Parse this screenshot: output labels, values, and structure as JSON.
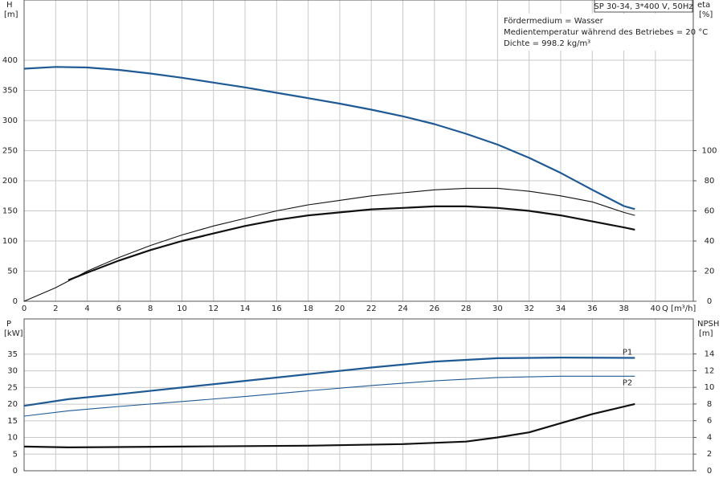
{
  "chart_data": [
    {
      "type": "line",
      "ylabel": "H",
      "yunit": "[m]",
      "y2label": "eta",
      "y2unit": "[%]",
      "xlabel": "Q [m³/h]",
      "title": "SP 30-34, 3*400 V, 50Hz",
      "annotations": [
        "Fördermedium = Wasser",
        "Medientemperatur während des Betriebes = 20 °C",
        "Dichte = 998.2 kg/m³"
      ],
      "xlim": [
        0,
        42.4
      ],
      "xticks": [
        0,
        2,
        4,
        6,
        8,
        10,
        12,
        14,
        16,
        18,
        20,
        22,
        24,
        26,
        28,
        30,
        32,
        34,
        36,
        38,
        40
      ],
      "tick_labels": true,
      "ylim": [
        0,
        500
      ],
      "yticks": [
        0,
        50,
        100,
        150,
        200,
        250,
        300,
        350,
        400
      ],
      "y2lim": [
        0,
        200
      ],
      "y2ticks": [
        0,
        20,
        40,
        60,
        80,
        100
      ],
      "grid": true,
      "series": [
        {
          "color": "#1f5a94",
          "style": "thick",
          "x": [
            0,
            2,
            4,
            6,
            8,
            10,
            12,
            14,
            16,
            18,
            20,
            22,
            24,
            26,
            28,
            30,
            32,
            34,
            36,
            38,
            38.7
          ],
          "values": [
            386,
            389,
            388,
            384,
            378,
            371,
            363,
            355,
            346,
            337,
            328,
            318,
            307,
            294,
            278,
            260,
            238,
            213,
            185,
            158,
            153
          ]
        },
        {
          "color": "#111111",
          "style": "thin",
          "axis": "y2",
          "x": [
            0,
            2,
            4,
            6,
            8,
            10,
            12,
            14,
            16,
            18,
            20,
            22,
            24,
            26,
            28,
            30,
            32,
            34,
            36,
            38,
            38.7
          ],
          "values": [
            0,
            9,
            20,
            29,
            37,
            44,
            50,
            55,
            60,
            64,
            67,
            70,
            72,
            74,
            75,
            75,
            73,
            70,
            66,
            59,
            57
          ]
        },
        {
          "color": "#111111",
          "style": "thick",
          "axis": "y2",
          "x": [
            2.8,
            4,
            6,
            8,
            10,
            12,
            14,
            16,
            18,
            20,
            22,
            24,
            26,
            28,
            30,
            32,
            34,
            36,
            38,
            38.7
          ],
          "values": [
            14,
            19,
            27,
            34,
            40,
            45,
            50,
            54,
            57,
            59,
            61,
            62,
            63,
            63,
            62,
            60,
            57,
            53,
            49,
            47.5
          ]
        }
      ]
    },
    {
      "type": "line",
      "ylabel": "P",
      "yunit": "[kW]",
      "y2label": "NPSH",
      "y2unit": "[m]",
      "xlim": [
        0,
        42.4
      ],
      "xticks": [
        0,
        2,
        4,
        6,
        8,
        10,
        12,
        14,
        16,
        18,
        20,
        22,
        24,
        26,
        28,
        30,
        32,
        34,
        36,
        38,
        40
      ],
      "tick_labels": false,
      "ylim": [
        0,
        45.6
      ],
      "yticks": [
        0,
        5,
        10,
        15,
        20,
        25,
        30,
        35
      ],
      "y2lim": [
        0,
        18.2
      ],
      "y2ticks": [
        0,
        2,
        4,
        6,
        8,
        10,
        12,
        14
      ],
      "grid": true,
      "series": [
        {
          "name": "P1",
          "color": "#1f5a94",
          "style": "thick",
          "x": [
            0,
            2.8,
            6,
            10,
            14,
            18,
            22,
            26,
            30,
            34,
            38.7
          ],
          "values": [
            19.5,
            21.5,
            23,
            25,
            27,
            29,
            31,
            32.8,
            33.8,
            34,
            33.9
          ]
        },
        {
          "name": "P2",
          "color": "#1f5a94",
          "style": "thin",
          "x": [
            0,
            2.8,
            6,
            10,
            14,
            18,
            22,
            26,
            30,
            34,
            38.7
          ],
          "values": [
            16.4,
            18,
            19.3,
            20.8,
            22.3,
            24,
            25.6,
            27,
            28,
            28.4,
            28.4
          ]
        },
        {
          "color": "#111111",
          "style": "thick",
          "axis": "y2",
          "x": [
            0,
            2.8,
            10,
            18,
            24,
            28,
            30,
            32,
            34,
            36,
            38.7
          ],
          "values": [
            2.9,
            2.8,
            2.9,
            3.0,
            3.2,
            3.5,
            4.0,
            4.6,
            5.7,
            6.8,
            8.0
          ]
        }
      ]
    }
  ]
}
